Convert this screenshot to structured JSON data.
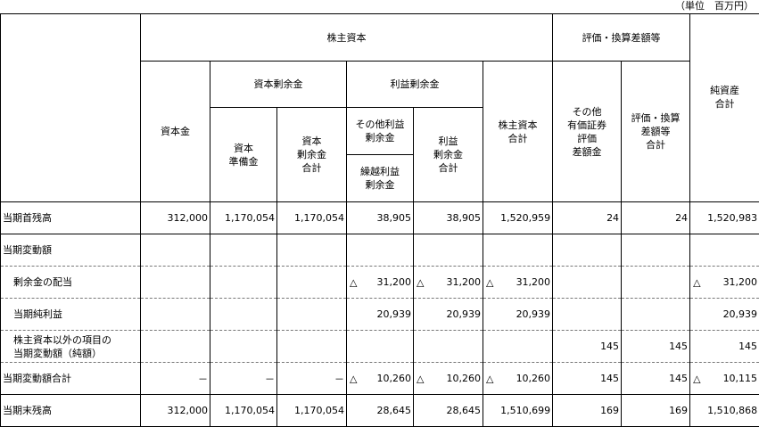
{
  "unit_note": "（単位　百万円）",
  "headers": {
    "shareholders_equity": "株主資本",
    "valuation": "評価・換算差額等",
    "capital_stock": "資本金",
    "capital_surplus": "資本剰余金",
    "capital_reserve": [
      "資本",
      "準備金"
    ],
    "capital_surplus_total": [
      "資本",
      "剰余金",
      "合計"
    ],
    "retained_earnings": "利益剰余金",
    "other_retained": [
      "その他利益",
      "剰余金"
    ],
    "carried_forward": [
      "繰越利益",
      "剰余金"
    ],
    "retained_total": [
      "利益",
      "剰余金",
      "合計"
    ],
    "equity_total": [
      "株主資本",
      "合計"
    ],
    "securities_valuation": [
      "その他",
      "有価証券",
      "評価",
      "差額金"
    ],
    "valuation_total": [
      "評価・換算",
      "差額等",
      "合計"
    ],
    "net_assets_total": [
      "純資産",
      "合計"
    ]
  },
  "rows": [
    {
      "label": [
        "当期首残高"
      ],
      "indent": false,
      "cells": [
        {
          "v": "312,000"
        },
        {
          "v": "1,170,054"
        },
        {
          "v": "1,170,054"
        },
        {
          "v": "38,905"
        },
        {
          "v": "38,905"
        },
        {
          "v": "1,520,959"
        },
        {
          "v": "24"
        },
        {
          "v": "24"
        },
        {
          "v": "1,520,983"
        }
      ]
    },
    {
      "label": [
        "当期変動額"
      ],
      "indent": false,
      "cells": [
        {
          "v": ""
        },
        {
          "v": ""
        },
        {
          "v": ""
        },
        {
          "v": ""
        },
        {
          "v": ""
        },
        {
          "v": ""
        },
        {
          "v": ""
        },
        {
          "v": ""
        },
        {
          "v": ""
        }
      ]
    },
    {
      "label": [
        "剰余金の配当"
      ],
      "indent": true,
      "cells": [
        {
          "v": ""
        },
        {
          "v": ""
        },
        {
          "v": ""
        },
        {
          "t": "△",
          "v": "31,200"
        },
        {
          "t": "△",
          "v": "31,200"
        },
        {
          "t": "△",
          "v": "31,200"
        },
        {
          "v": ""
        },
        {
          "v": ""
        },
        {
          "t": "△",
          "v": "31,200"
        }
      ]
    },
    {
      "label": [
        "当期純利益"
      ],
      "indent": true,
      "cells": [
        {
          "v": ""
        },
        {
          "v": ""
        },
        {
          "v": ""
        },
        {
          "v": "20,939"
        },
        {
          "v": "20,939"
        },
        {
          "v": "20,939"
        },
        {
          "v": ""
        },
        {
          "v": ""
        },
        {
          "v": "20,939"
        }
      ]
    },
    {
      "label": [
        "株主資本以外の項目の",
        "当期変動額（純額）"
      ],
      "indent": true,
      "cells": [
        {
          "v": ""
        },
        {
          "v": ""
        },
        {
          "v": ""
        },
        {
          "v": ""
        },
        {
          "v": ""
        },
        {
          "v": ""
        },
        {
          "v": "145"
        },
        {
          "v": "145"
        },
        {
          "v": "145"
        }
      ]
    },
    {
      "label": [
        "当期変動額合計"
      ],
      "indent": false,
      "cells": [
        {
          "v": "－"
        },
        {
          "v": "－"
        },
        {
          "v": "－"
        },
        {
          "t": "△",
          "v": "10,260"
        },
        {
          "t": "△",
          "v": "10,260"
        },
        {
          "t": "△",
          "v": "10,260"
        },
        {
          "v": "145"
        },
        {
          "v": "145"
        },
        {
          "t": "△",
          "v": "10,115"
        }
      ]
    },
    {
      "label": [
        "当期末残高"
      ],
      "indent": false,
      "cells": [
        {
          "v": "312,000"
        },
        {
          "v": "1,170,054"
        },
        {
          "v": "1,170,054"
        },
        {
          "v": "28,645"
        },
        {
          "v": "28,645"
        },
        {
          "v": "1,510,699"
        },
        {
          "v": "169"
        },
        {
          "v": "169"
        },
        {
          "v": "1,510,868"
        }
      ]
    }
  ]
}
